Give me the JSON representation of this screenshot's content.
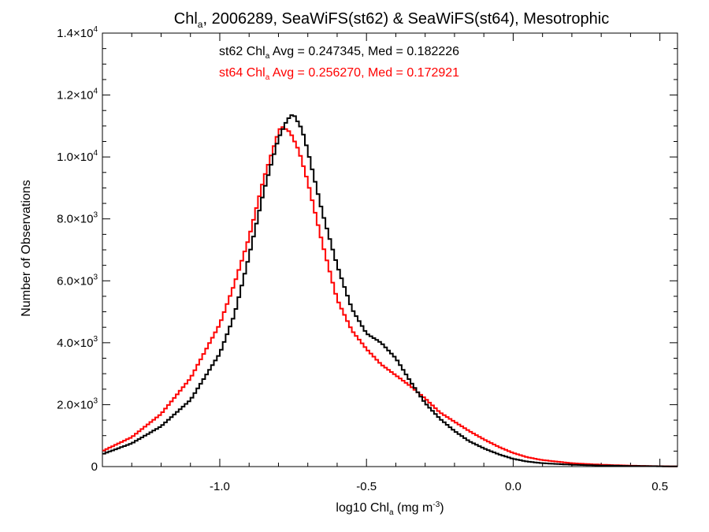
{
  "chart_data": {
    "type": "line",
    "step": true,
    "title": {
      "pre": "Chl",
      "sub": "a",
      "post": ", 2006289, SeaWiFS(st62) & SeaWiFS(st64), Mesotrophic"
    },
    "xlabel": {
      "pre": "log10 Chl",
      "sub": "a",
      "mid": " (mg m",
      "sup": "-3",
      "post": ")"
    },
    "ylabel": "Number of Observations",
    "xlim": [
      -1.4,
      0.56
    ],
    "ylim": [
      0,
      14000
    ],
    "xticks": [
      {
        "value": -1.0,
        "label": "-1.0"
      },
      {
        "value": -0.5,
        "label": "-0.5"
      },
      {
        "value": 0.0,
        "label": "0.0"
      },
      {
        "value": 0.5,
        "label": "0.5"
      }
    ],
    "yticks": [
      {
        "value": 0,
        "mant": "0",
        "exp": ""
      },
      {
        "value": 2000,
        "mant": "2.0×10",
        "exp": "3"
      },
      {
        "value": 4000,
        "mant": "4.0×10",
        "exp": "3"
      },
      {
        "value": 6000,
        "mant": "6.0×10",
        "exp": "3"
      },
      {
        "value": 8000,
        "mant": "8.0×10",
        "exp": "3"
      },
      {
        "value": 10000,
        "mant": "1.0×10",
        "exp": "4"
      },
      {
        "value": 12000,
        "mant": "1.2×10",
        "exp": "4"
      },
      {
        "value": 14000,
        "mant": "1.4×10",
        "exp": "4"
      }
    ],
    "grid": false,
    "series": [
      {
        "name": "st62",
        "color": "#000000",
        "annotation": {
          "pre": "st62 Chl",
          "sub": "a",
          "post": " Avg = 0.247345, Med = 0.182226"
        },
        "points": [
          [
            -1.4,
            400
          ],
          [
            -1.3,
            750
          ],
          [
            -1.2,
            1300
          ],
          [
            -1.1,
            2150
          ],
          [
            -1.0,
            3650
          ],
          [
            -0.95,
            4900
          ],
          [
            -0.9,
            6800
          ],
          [
            -0.85,
            8900
          ],
          [
            -0.8,
            10600
          ],
          [
            -0.77,
            11200
          ],
          [
            -0.75,
            11400
          ],
          [
            -0.72,
            10900
          ],
          [
            -0.7,
            10200
          ],
          [
            -0.65,
            8200
          ],
          [
            -0.6,
            6500
          ],
          [
            -0.55,
            5100
          ],
          [
            -0.5,
            4300
          ],
          [
            -0.45,
            4000
          ],
          [
            -0.4,
            3500
          ],
          [
            -0.35,
            2750
          ],
          [
            -0.3,
            2050
          ],
          [
            -0.25,
            1550
          ],
          [
            -0.2,
            1150
          ],
          [
            -0.15,
            820
          ],
          [
            -0.1,
            590
          ],
          [
            -0.05,
            400
          ],
          [
            0.0,
            250
          ],
          [
            0.05,
            160
          ],
          [
            0.1,
            110
          ],
          [
            0.2,
            60
          ],
          [
            0.3,
            35
          ],
          [
            0.4,
            20
          ],
          [
            0.5,
            10
          ],
          [
            0.56,
            5
          ]
        ]
      },
      {
        "name": "st64",
        "color": "#ff0000",
        "annotation": {
          "pre": "st64 Chl",
          "sub": "a",
          "post": " Avg = 0.256270, Med = 0.172921"
        },
        "points": [
          [
            -1.4,
            500
          ],
          [
            -1.3,
            950
          ],
          [
            -1.2,
            1700
          ],
          [
            -1.1,
            2850
          ],
          [
            -1.0,
            4600
          ],
          [
            -0.95,
            5900
          ],
          [
            -0.9,
            7400
          ],
          [
            -0.85,
            9300
          ],
          [
            -0.8,
            10800
          ],
          [
            -0.79,
            11000
          ],
          [
            -0.76,
            10800
          ],
          [
            -0.73,
            10200
          ],
          [
            -0.7,
            9200
          ],
          [
            -0.65,
            7200
          ],
          [
            -0.6,
            5400
          ],
          [
            -0.55,
            4400
          ],
          [
            -0.5,
            3800
          ],
          [
            -0.45,
            3300
          ],
          [
            -0.4,
            2950
          ],
          [
            -0.35,
            2600
          ],
          [
            -0.3,
            2200
          ],
          [
            -0.25,
            1750
          ],
          [
            -0.2,
            1450
          ],
          [
            -0.15,
            1150
          ],
          [
            -0.1,
            880
          ],
          [
            -0.05,
            640
          ],
          [
            0.0,
            440
          ],
          [
            0.05,
            300
          ],
          [
            0.1,
            210
          ],
          [
            0.2,
            110
          ],
          [
            0.3,
            60
          ],
          [
            0.4,
            30
          ],
          [
            0.5,
            12
          ],
          [
            0.56,
            6
          ]
        ]
      }
    ]
  }
}
